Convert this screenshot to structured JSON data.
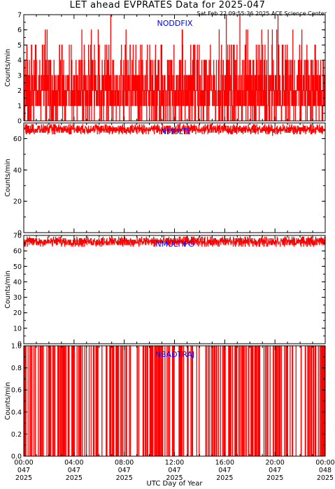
{
  "title": "LET ahead EVPRATES Data for 2025-047",
  "timestamp": "Sat Feb 22 09:55:36 2025 ACE Science Center",
  "xlabel": "UTC Day of Year",
  "colors": {
    "trace": "#ff0000",
    "panel_label": "#0000ff",
    "axis": "#000000"
  },
  "chart_data": [
    {
      "type": "line",
      "label": "NODDFIX",
      "ylabel": "Counts/min",
      "ylim": [
        0,
        7
      ],
      "yticks": [
        0,
        1,
        2,
        3,
        4,
        5,
        6,
        7
      ],
      "xlim": [
        0,
        24
      ],
      "x_unit": "hours UTC",
      "noise": {
        "kind": "poisson_counts",
        "mean": 2.1,
        "max": 7,
        "samples": 1440
      }
    },
    {
      "type": "line",
      "label": "NMULTI",
      "ylabel": "Counts/min",
      "ylim": [
        0,
        70
      ],
      "yticks": [
        0,
        20,
        40,
        60
      ],
      "xlim": [
        0,
        24
      ],
      "noise": {
        "kind": "band",
        "low": 63,
        "high": 69,
        "mean": 66,
        "samples": 1440
      }
    },
    {
      "type": "line",
      "label": "NMULTIFG",
      "ylabel": "Counts/min",
      "ylim": [
        0,
        70
      ],
      "yticks": [
        0,
        10,
        20,
        30,
        40,
        50,
        60,
        70
      ],
      "xlim": [
        0,
        24
      ],
      "noise": {
        "kind": "band",
        "low": 63,
        "high": 69,
        "mean": 66,
        "samples": 1440
      }
    },
    {
      "type": "line",
      "label": "NBADTRAJ",
      "ylabel": "Counts/min",
      "ylim": [
        0,
        1
      ],
      "yticks": [
        0.0,
        0.2,
        0.4,
        0.6,
        0.8,
        1.0
      ],
      "xlim": [
        0,
        24
      ],
      "noise": {
        "kind": "binary_spikes",
        "probability": 0.18,
        "samples": 1440
      }
    }
  ],
  "xaxis": {
    "ticks": [
      {
        "x": 0,
        "time": "00:00",
        "doy": "047",
        "year": "2025"
      },
      {
        "x": 4,
        "time": "04:00",
        "doy": "047",
        "year": "2025"
      },
      {
        "x": 8,
        "time": "08:00",
        "doy": "047",
        "year": "2025"
      },
      {
        "x": 12,
        "time": "12:00",
        "doy": "047",
        "year": "2025"
      },
      {
        "x": 16,
        "time": "16:00",
        "doy": "047",
        "year": "2025"
      },
      {
        "x": 20,
        "time": "20:00",
        "doy": "047",
        "year": "2025"
      },
      {
        "x": 24,
        "time": "00:00",
        "doy": "048",
        "year": "2025"
      }
    ]
  }
}
